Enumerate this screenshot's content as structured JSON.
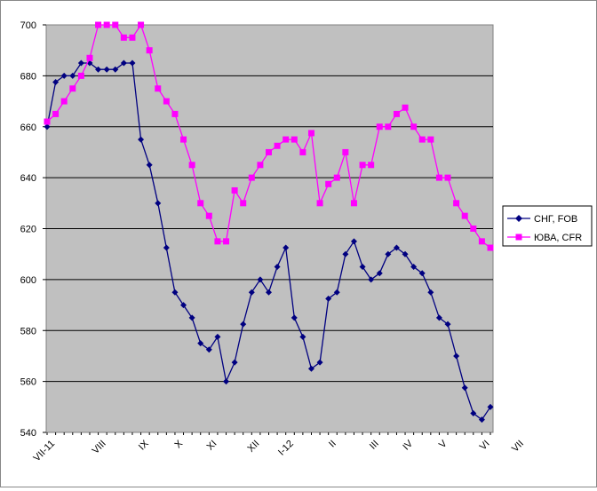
{
  "chart_data": {
    "type": "line",
    "ylim": [
      540,
      700
    ],
    "yticks": [
      540,
      560,
      580,
      600,
      620,
      640,
      660,
      680,
      700
    ],
    "x_labels": [
      {
        "i": 0,
        "label": "VII-11"
      },
      {
        "i": 6,
        "label": "VIII"
      },
      {
        "i": 11,
        "label": "IX"
      },
      {
        "i": 15,
        "label": "X"
      },
      {
        "i": 19,
        "label": "XI"
      },
      {
        "i": 24,
        "label": "XII"
      },
      {
        "i": 28,
        "label": "I-12"
      },
      {
        "i": 33,
        "label": "II"
      },
      {
        "i": 38,
        "label": "III"
      },
      {
        "i": 42,
        "label": "IV"
      },
      {
        "i": 46,
        "label": "V"
      },
      {
        "i": 51,
        "label": "VI"
      },
      {
        "i": 55,
        "label": "VII"
      }
    ],
    "grid": true,
    "legend_position": "right",
    "series": [
      {
        "name": "СНГ, FOB",
        "color": "#000080",
        "marker": "diamond",
        "values": [
          660,
          677.5,
          680,
          680,
          685,
          685,
          682.5,
          682.5,
          682.5,
          685,
          685,
          655,
          645,
          630,
          612.5,
          595,
          590,
          585,
          575,
          572.5,
          577.5,
          560,
          567.5,
          582.5,
          595,
          600,
          595,
          605,
          612.5,
          585,
          577.5,
          565,
          567.5,
          592.5,
          595,
          610,
          615,
          605,
          600,
          602.5,
          610,
          612.5,
          610,
          605,
          602.5,
          595,
          585,
          582.5,
          570,
          557.5,
          547.5,
          545,
          550
        ]
      },
      {
        "name": "ЮВА, CFR",
        "color": "#ff00ff",
        "marker": "square",
        "values": [
          662,
          665,
          670,
          675,
          680,
          687,
          700,
          700,
          700,
          695,
          695,
          700,
          690,
          675,
          670,
          665,
          655,
          645,
          630,
          625,
          615,
          615,
          635,
          630,
          640,
          645,
          650,
          652.5,
          655,
          655,
          650,
          657.5,
          630,
          637.5,
          640,
          650,
          630,
          645,
          645,
          660,
          660,
          665,
          667.5,
          660,
          655,
          655,
          640,
          640,
          630,
          625,
          620,
          615,
          612.5
        ]
      }
    ]
  }
}
